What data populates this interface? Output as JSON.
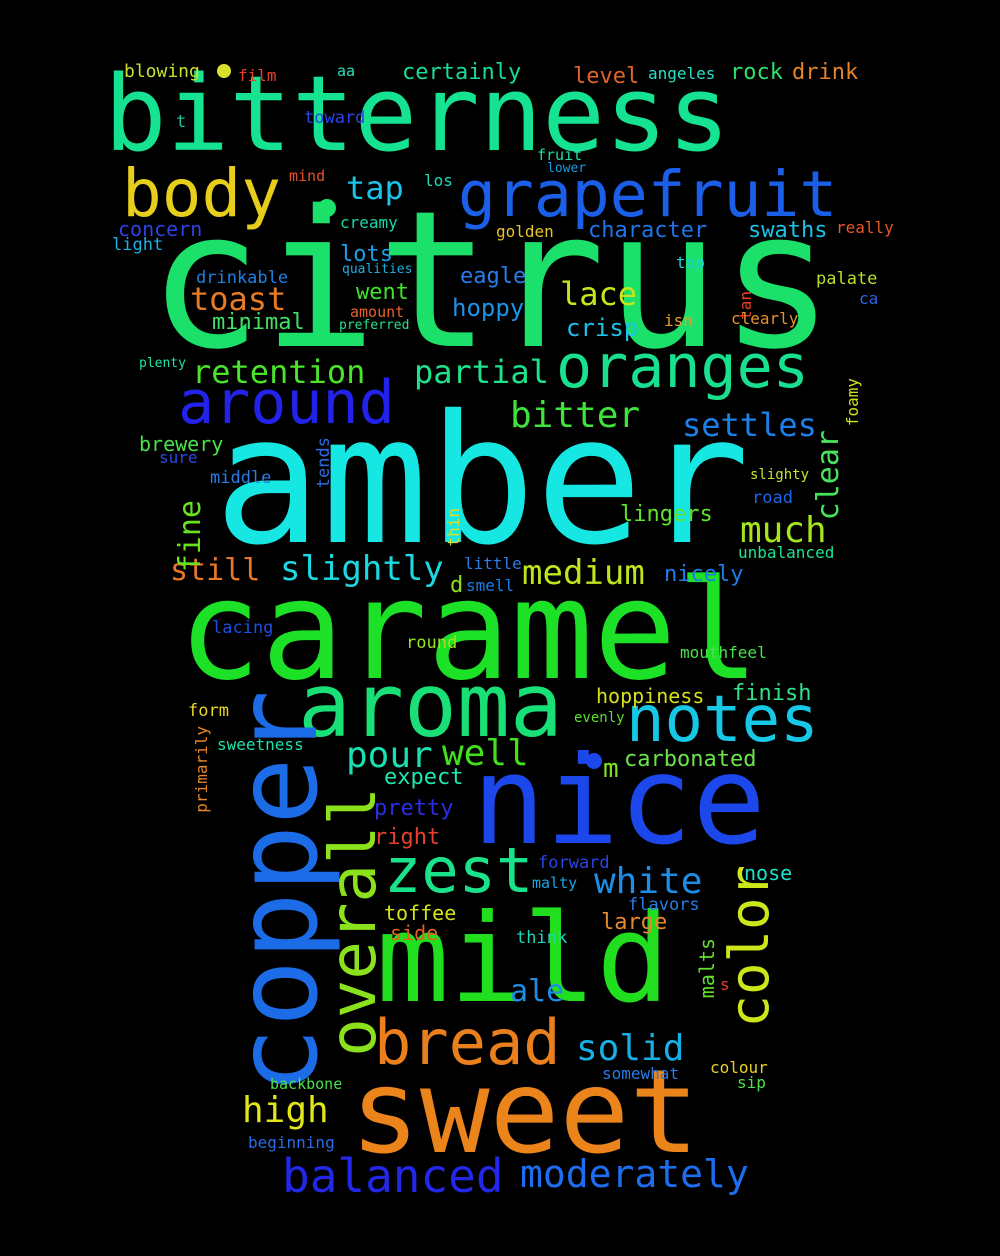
{
  "colors": {
    "background": "#000000"
  },
  "words": [
    {
      "text": "citrus",
      "color": "#1be16a"
    },
    {
      "text": "amber",
      "color": "#17e7e2"
    },
    {
      "text": "caramel",
      "color": "#1de126"
    },
    {
      "text": "bitterness",
      "color": "#15e391"
    },
    {
      "text": "nice",
      "color": "#1c47ea"
    },
    {
      "text": "mild",
      "color": "#21df1f"
    },
    {
      "text": "sweet",
      "color": "#ea841b"
    },
    {
      "text": "aroma",
      "color": "#19e076"
    },
    {
      "text": "copper",
      "color": "#1c6ce8"
    },
    {
      "text": "notes",
      "color": "#16c7e6"
    },
    {
      "text": "grapefruit",
      "color": "#1b5fe9"
    },
    {
      "text": "oranges",
      "color": "#19e08e"
    },
    {
      "text": "around",
      "color": "#2222ea"
    },
    {
      "text": "body",
      "color": "#e6ce1a"
    },
    {
      "text": "bread",
      "color": "#e97f1d"
    },
    {
      "text": "overall",
      "color": "#8be21c"
    },
    {
      "text": "zest",
      "color": "#19e38a"
    },
    {
      "text": "color",
      "color": "#cde61a"
    },
    {
      "text": "balanced",
      "color": "#2328e8"
    },
    {
      "text": "moderately",
      "color": "#1d6df0"
    },
    {
      "text": "solid",
      "color": "#17b0e6"
    },
    {
      "text": "white",
      "color": "#1c8ee8"
    },
    {
      "text": "pour",
      "color": "#18e0b1"
    },
    {
      "text": "well",
      "color": "#41e21c"
    },
    {
      "text": "high",
      "color": "#e3e51b"
    },
    {
      "text": "medium",
      "color": "#bfe51c"
    },
    {
      "text": "much",
      "color": "#a7e51b"
    },
    {
      "text": "bitter",
      "color": "#3ee43a"
    },
    {
      "text": "slightly",
      "color": "#1cd8e0"
    },
    {
      "text": "partial",
      "color": "#1ee38b"
    },
    {
      "text": "retention",
      "color": "#4be22a"
    },
    {
      "text": "toast",
      "color": "#e77a25"
    },
    {
      "text": "tap",
      "color": "#1ac3e8"
    },
    {
      "text": "lace",
      "color": "#c4e61c"
    },
    {
      "text": "settles",
      "color": "#1b81e8"
    },
    {
      "text": "clear",
      "color": "#48e25e"
    },
    {
      "text": "still",
      "color": "#e8762a"
    },
    {
      "text": "fine",
      "color": "#6ae31e"
    },
    {
      "text": "crisp",
      "color": "#1cc2e8"
    },
    {
      "text": "hoppy",
      "color": "#1b93e8"
    },
    {
      "text": "went",
      "color": "#3fe42a"
    },
    {
      "text": "minimal",
      "color": "#41e06a"
    },
    {
      "text": "lots",
      "color": "#1d9de8"
    },
    {
      "text": "certainly",
      "color": "#18dc9c"
    },
    {
      "text": "drink",
      "color": "#e6822a"
    },
    {
      "text": "rock",
      "color": "#2ee06e"
    },
    {
      "text": "level",
      "color": "#e2632a"
    },
    {
      "text": "character",
      "color": "#1f75e5"
    },
    {
      "text": "swaths",
      "color": "#1cc3e6"
    },
    {
      "text": "eagle",
      "color": "#2a7cea"
    },
    {
      "text": "pretty",
      "color": "#2a2ee6"
    },
    {
      "text": "right",
      "color": "#e6402a"
    },
    {
      "text": "expect",
      "color": "#1de7ae"
    },
    {
      "text": "carbonated",
      "color": "#6ae44a"
    },
    {
      "text": "lingers",
      "color": "#60e12e"
    },
    {
      "text": "nicely",
      "color": "#1d7de8"
    },
    {
      "text": "finish",
      "color": "#34e08a"
    },
    {
      "text": "hoppiness",
      "color": "#d7e01c"
    },
    {
      "text": "m",
      "color": "#7ee21c"
    },
    {
      "text": "toffee",
      "color": "#d4e31a"
    },
    {
      "text": "large",
      "color": "#e6882a"
    },
    {
      "text": "side",
      "color": "#e5611c"
    },
    {
      "text": "ale",
      "color": "#1d8de6"
    },
    {
      "text": "nose",
      "color": "#1ae3cd"
    },
    {
      "text": "malts",
      "color": "#60e22a"
    },
    {
      "text": "brewery",
      "color": "#48e24a"
    },
    {
      "text": "forward",
      "color": "#2a44e6"
    },
    {
      "text": "malty",
      "color": "#1aa7e0"
    },
    {
      "text": "flavors",
      "color": "#2a7ce6"
    },
    {
      "text": "think",
      "color": "#1bd7b8"
    },
    {
      "text": "form",
      "color": "#e7d62a"
    },
    {
      "text": "sweetness",
      "color": "#1ae2a8"
    },
    {
      "text": "primarily",
      "color": "#e6862a"
    },
    {
      "text": "evenly",
      "color": "#5ae02a"
    },
    {
      "text": "mouthfeel",
      "color": "#48e24a"
    },
    {
      "text": "round",
      "color": "#9ae32a"
    },
    {
      "text": "lacing",
      "color": "#1b4ee4"
    },
    {
      "text": "smell",
      "color": "#1b7ee6"
    },
    {
      "text": "little",
      "color": "#2a7ce6"
    },
    {
      "text": "d",
      "color": "#8ae21c"
    },
    {
      "text": "thin",
      "color": "#d8e02a"
    },
    {
      "text": "unbalanced",
      "color": "#1de490"
    },
    {
      "text": "road",
      "color": "#1b66ea"
    },
    {
      "text": "slighty",
      "color": "#c8e62a"
    },
    {
      "text": "foamy",
      "color": "#d0e21a"
    },
    {
      "text": "tends",
      "color": "#2a6ce6"
    },
    {
      "text": "middle",
      "color": "#2a7ce6"
    },
    {
      "text": "sure",
      "color": "#2a4ae6"
    },
    {
      "text": "plenty",
      "color": "#1be4a6"
    },
    {
      "text": "preferred",
      "color": "#2ae08a"
    },
    {
      "text": "amount",
      "color": "#e6622a"
    },
    {
      "text": "qualities",
      "color": "#1ab0e2"
    },
    {
      "text": "drinkable",
      "color": "#1d82e4"
    },
    {
      "text": "light",
      "color": "#1bb0e8"
    },
    {
      "text": "concern",
      "color": "#2a44e6"
    },
    {
      "text": "golden",
      "color": "#e8c32a"
    },
    {
      "text": "creamy",
      "color": "#18d8a8"
    },
    {
      "text": "los",
      "color": "#1ad8b8"
    },
    {
      "text": "lower",
      "color": "#1a9ce6"
    },
    {
      "text": "fruit",
      "color": "#1ae0a8"
    },
    {
      "text": "toward",
      "color": "#2a44e6"
    },
    {
      "text": "mind",
      "color": "#e6522a"
    },
    {
      "text": "t",
      "color": "#1ac9a0"
    },
    {
      "text": "film",
      "color": "#e6402a"
    },
    {
      "text": "blowing",
      "color": "#c8e02a"
    },
    {
      "text": "aa",
      "color": "#2ae0c0"
    },
    {
      "text": "angeles",
      "color": "#2ae0c8"
    },
    {
      "text": "really",
      "color": "#e8562a"
    },
    {
      "text": "top",
      "color": "#1bd0e0"
    },
    {
      "text": "tan",
      "color": "#e6402a"
    },
    {
      "text": "palate",
      "color": "#b8e02a"
    },
    {
      "text": "ca",
      "color": "#2a66e6"
    },
    {
      "text": "isn",
      "color": "#e6a02a"
    },
    {
      "text": "clearly",
      "color": "#e6922a"
    },
    {
      "text": "backbone",
      "color": "#48e24a"
    },
    {
      "text": "beginning",
      "color": "#2a6ce6"
    },
    {
      "text": "somewhat",
      "color": "#2a7ce6"
    },
    {
      "text": "colour",
      "color": "#e6d02a"
    },
    {
      "text": "sip",
      "color": "#48e24a"
    },
    {
      "text": "s",
      "color": "#e6402a"
    }
  ]
}
